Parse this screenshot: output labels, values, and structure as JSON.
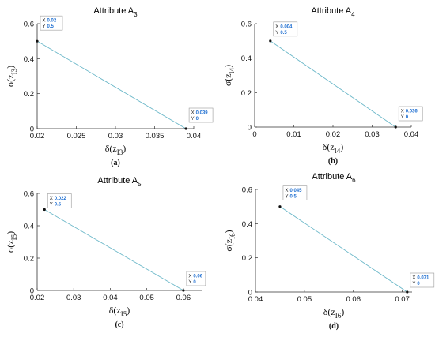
{
  "chart_data": [
    {
      "type": "line",
      "title": "Attribute A",
      "title_subscript": "3",
      "caption": "(a)",
      "xlabel": "δ(z",
      "xlabel_subscript": "I3",
      "ylabel": "σ(z",
      "ylabel_subscript": "I3",
      "xlim": [
        0.02,
        0.04
      ],
      "ylim": [
        0,
        0.6
      ],
      "xticks": [
        "0.02",
        "0.025",
        "0.03",
        "0.035",
        "0.04"
      ],
      "yticks": [
        "0",
        "0.2",
        "0.4",
        "0.6"
      ],
      "x": [
        0.02,
        0.039
      ],
      "y": [
        0.5,
        0
      ],
      "datatips": [
        {
          "x_label": "X",
          "x_value": "0.02",
          "y_label": "Y",
          "y_value": "0.5"
        },
        {
          "x_label": "X",
          "x_value": "0.039",
          "y_label": "Y",
          "y_value": "0"
        }
      ],
      "line_color": "#6cb8c9",
      "grid": false
    },
    {
      "type": "line",
      "title": "Attribute A",
      "title_subscript": "4",
      "caption": "(b)",
      "xlabel": "δ(z",
      "xlabel_subscript": "I4",
      "ylabel": "σ(z",
      "ylabel_subscript": "I4",
      "xlim": [
        0,
        0.04
      ],
      "ylim": [
        0,
        0.6
      ],
      "xticks": [
        "0",
        "0.01",
        "0.02",
        "0.03",
        "0.04"
      ],
      "yticks": [
        "0",
        "0.2",
        "0.4",
        "0.6"
      ],
      "x": [
        0.004,
        0.036
      ],
      "y": [
        0.5,
        0
      ],
      "datatips": [
        {
          "x_label": "X",
          "x_value": "0.004",
          "y_label": "Y",
          "y_value": "0.5"
        },
        {
          "x_label": "X",
          "x_value": "0.036",
          "y_label": "Y",
          "y_value": "0"
        }
      ],
      "line_color": "#6cb8c9",
      "grid": false
    },
    {
      "type": "line",
      "title": "Attribute A",
      "title_subscript": "5",
      "caption": "(c)",
      "xlabel": "δ(z",
      "xlabel_subscript": "I5",
      "ylabel": "σ(z",
      "ylabel_subscript": "I5",
      "xlim": [
        0.02,
        0.065
      ],
      "ylim": [
        0,
        0.6
      ],
      "xticks": [
        "0.02",
        "0.03",
        "0.04",
        "0.05",
        "0.06"
      ],
      "yticks": [
        "0",
        "0.2",
        "0.4",
        "0.6"
      ],
      "x": [
        0.022,
        0.06
      ],
      "y": [
        0.5,
        0
      ],
      "datatips": [
        {
          "x_label": "X",
          "x_value": "0.022",
          "y_label": "Y",
          "y_value": "0.5"
        },
        {
          "x_label": "X",
          "x_value": "0.06",
          "y_label": "Y",
          "y_value": "0"
        }
      ],
      "line_color": "#6cb8c9",
      "grid": false
    },
    {
      "type": "line",
      "title": "Attribute A",
      "title_subscript": "6",
      "caption": "(d)",
      "xlabel": "δ(z",
      "xlabel_subscript": "I6",
      "ylabel": "σ(z",
      "ylabel_subscript": "I6",
      "xlim": [
        0.04,
        0.072
      ],
      "ylim": [
        0,
        0.6
      ],
      "xticks": [
        "0.04",
        "0.05",
        "0.06",
        "0.07"
      ],
      "yticks": [
        "0",
        "0.2",
        "0.4",
        "0.6"
      ],
      "x": [
        0.045,
        0.071
      ],
      "y": [
        0.5,
        0
      ],
      "datatips": [
        {
          "x_label": "X",
          "x_value": "0.045",
          "y_label": "Y",
          "y_value": "0.5"
        },
        {
          "x_label": "X",
          "x_value": "0.071",
          "y_label": "Y",
          "y_value": "0"
        }
      ],
      "line_color": "#6cb8c9",
      "grid": false
    }
  ]
}
